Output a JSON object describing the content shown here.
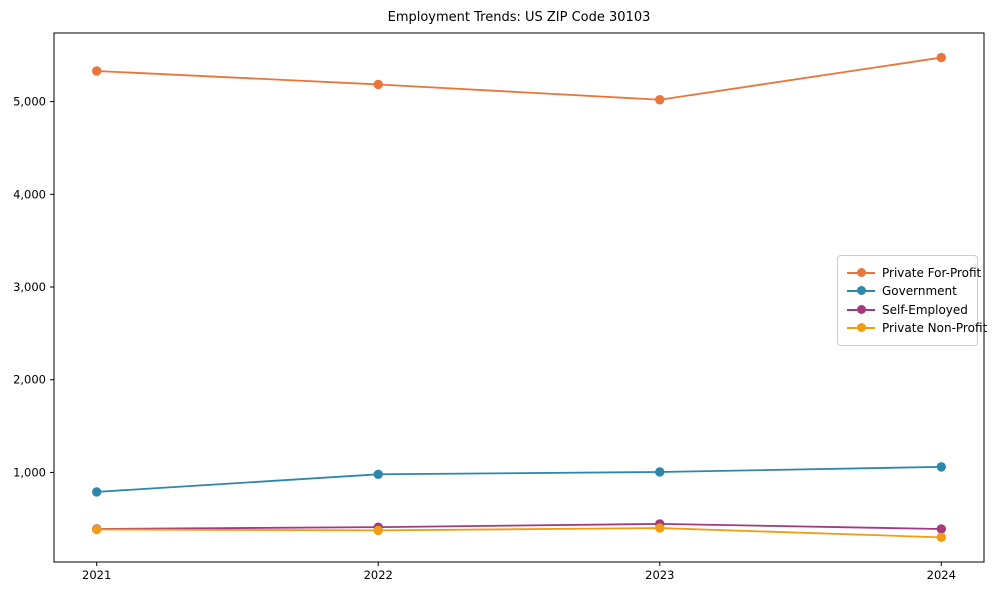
{
  "chart_data": {
    "type": "line",
    "title": "Employment Trends: US ZIP Code 30103",
    "categories": [
      "2021",
      "2022",
      "2023",
      "2024"
    ],
    "series": [
      {
        "name": "Private For-Profit",
        "color": "#E8763C",
        "values": [
          5330,
          5185,
          5020,
          5475
        ]
      },
      {
        "name": "Government",
        "color": "#2E86AB",
        "values": [
          790,
          980,
          1005,
          1060
        ]
      },
      {
        "name": "Self-Employed",
        "color": "#A23A7D",
        "values": [
          390,
          410,
          445,
          390
        ]
      },
      {
        "name": "Private Non-Profit",
        "color": "#F09D13",
        "values": [
          385,
          375,
          400,
          300
        ]
      }
    ],
    "xlabel": "",
    "ylabel": "",
    "ylim": [
      34,
      5740
    ],
    "yticks": [
      {
        "v": 1000,
        "label": "1,000"
      },
      {
        "v": 2000,
        "label": "2,000"
      },
      {
        "v": 3000,
        "label": "3,000"
      },
      {
        "v": 4000,
        "label": "4,000"
      },
      {
        "v": 5000,
        "label": "5,000"
      }
    ],
    "grid": false,
    "legend_position": "center right",
    "axis_color": "#000000",
    "background_color": "#ffffff"
  }
}
